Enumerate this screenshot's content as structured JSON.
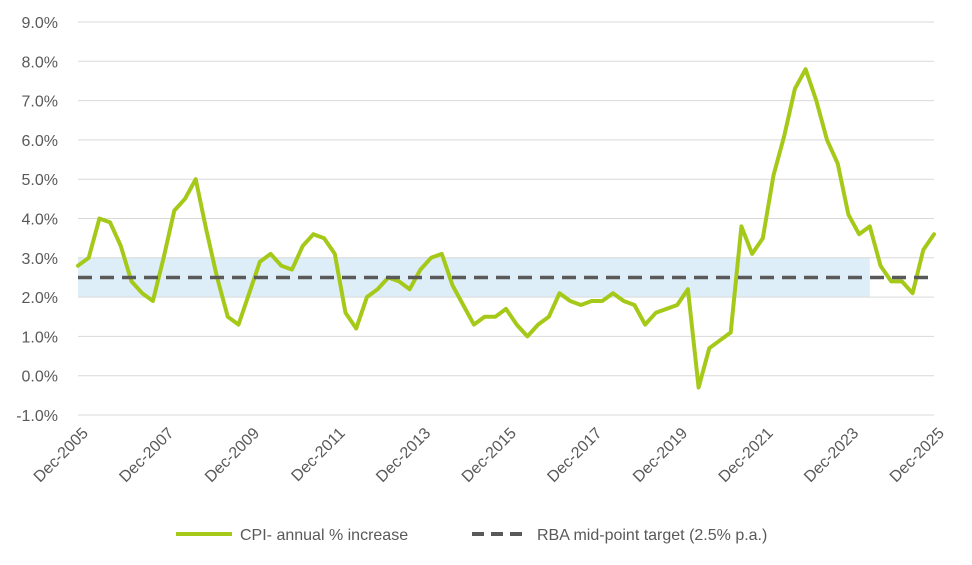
{
  "chart_data": {
    "type": "line",
    "title": "",
    "xlabel": "",
    "ylabel": "",
    "ylim": [
      -1.0,
      9.0
    ],
    "y_ticks": [
      "-1.0%",
      "0.0%",
      "1.0%",
      "2.0%",
      "3.0%",
      "4.0%",
      "5.0%",
      "6.0%",
      "7.0%",
      "8.0%",
      "9.0%"
    ],
    "x_ticks": [
      "Dec-2005",
      "Dec-2007",
      "Dec-2009",
      "Dec-2011",
      "Dec-2013",
      "Dec-2015",
      "Dec-2017",
      "Dec-2019",
      "Dec-2021",
      "Dec-2023",
      "Dec-2025"
    ],
    "x_range": [
      "Dec-2005",
      "Dec-2025"
    ],
    "grid": "horizontal",
    "legend_position": "bottom",
    "target_band": {
      "low": 2.0,
      "high": 3.0,
      "from": "Dec-2005",
      "to": "Jun-2024",
      "color": "#DDEEF9"
    },
    "series": [
      {
        "name": "CPI- annual % increase",
        "color": "#A5C919",
        "style": "solid",
        "frequency": "quarterly",
        "start": "Dec-2005",
        "values": [
          2.8,
          3.0,
          4.0,
          3.9,
          3.3,
          2.4,
          2.1,
          1.9,
          3.0,
          4.2,
          4.5,
          5.0,
          3.7,
          2.5,
          1.5,
          1.3,
          2.1,
          2.9,
          3.1,
          2.8,
          2.7,
          3.3,
          3.6,
          3.5,
          3.1,
          1.6,
          1.2,
          2.0,
          2.2,
          2.5,
          2.4,
          2.2,
          2.7,
          3.0,
          3.1,
          2.3,
          1.8,
          1.3,
          1.5,
          1.5,
          1.7,
          1.3,
          1.0,
          1.3,
          1.5,
          2.1,
          1.9,
          1.8,
          1.9,
          1.9,
          2.1,
          1.9,
          1.8,
          1.3,
          1.6,
          1.7,
          1.8,
          2.2,
          -0.3,
          0.7,
          0.9,
          1.1,
          3.8,
          3.1,
          3.5,
          5.1,
          6.1,
          7.3,
          7.8,
          7.0,
          6.0,
          5.4,
          4.1,
          3.6,
          3.8,
          2.8,
          2.4,
          2.4,
          2.1,
          3.2,
          3.6
        ]
      },
      {
        "name": "RBA mid-point target (2.5% p.a.)",
        "color": "#595959",
        "style": "dashed",
        "value": 2.5,
        "from": "Dec-2005",
        "to": "Dec-2025"
      }
    ]
  }
}
